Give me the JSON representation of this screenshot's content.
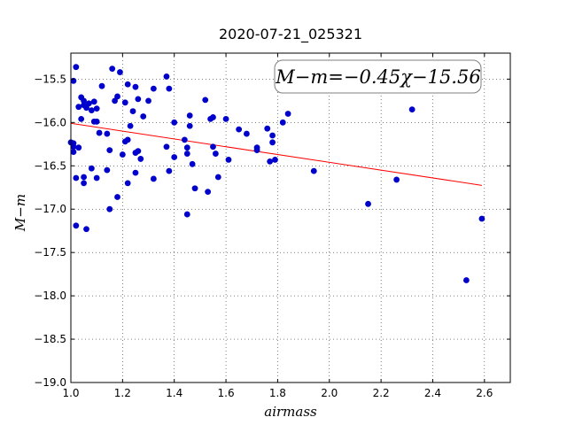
{
  "chart_data": {
    "type": "scatter",
    "title": "2020-07-21_025321",
    "xlabel": "airmass",
    "ylabel": "M−m",
    "xlim": [
      1.0,
      2.7
    ],
    "ylim": [
      -19.0,
      -15.2
    ],
    "xticks": [
      1.0,
      1.2,
      1.4,
      1.6,
      1.8,
      2.0,
      2.2,
      2.4,
      2.6
    ],
    "xtick_labels": [
      "1.0",
      "1.2",
      "1.4",
      "1.6",
      "1.8",
      "2.0",
      "2.2",
      "2.4",
      "2.6"
    ],
    "yticks": [
      -19.0,
      -18.5,
      -18.0,
      -17.5,
      -17.0,
      -16.5,
      -16.0,
      -15.5
    ],
    "ytick_labels": [
      "−19.0",
      "−18.5",
      "−18.0",
      "−17.5",
      "−17.0",
      "−16.5",
      "−16.0",
      "−15.5"
    ],
    "grid": true,
    "annotation": "M−m=−0.45χ−15.56",
    "fit": {
      "slope": -0.45,
      "intercept": -15.56,
      "x_range": [
        1.0,
        2.59
      ],
      "color": "#ff0000"
    },
    "point_color": "#0000cc",
    "series": [
      {
        "points": [
          [
            1.0,
            -16.23
          ],
          [
            1.01,
            -16.28
          ],
          [
            1.01,
            -16.34
          ],
          [
            1.01,
            -16.24
          ],
          [
            1.01,
            -15.52
          ],
          [
            1.02,
            -15.36
          ],
          [
            1.02,
            -16.64
          ],
          [
            1.02,
            -17.19
          ],
          [
            1.03,
            -15.82
          ],
          [
            1.03,
            -16.29
          ],
          [
            1.04,
            -15.96
          ],
          [
            1.04,
            -15.71
          ],
          [
            1.05,
            -15.75
          ],
          [
            1.05,
            -15.8
          ],
          [
            1.05,
            -16.63
          ],
          [
            1.05,
            -16.7
          ],
          [
            1.06,
            -17.23
          ],
          [
            1.06,
            -15.83
          ],
          [
            1.07,
            -15.78
          ],
          [
            1.08,
            -15.86
          ],
          [
            1.08,
            -16.53
          ],
          [
            1.09,
            -15.76
          ],
          [
            1.09,
            -15.99
          ],
          [
            1.1,
            -15.99
          ],
          [
            1.1,
            -15.84
          ],
          [
            1.1,
            -16.64
          ],
          [
            1.11,
            -16.12
          ],
          [
            1.12,
            -15.58
          ],
          [
            1.14,
            -16.13
          ],
          [
            1.14,
            -16.55
          ],
          [
            1.15,
            -16.32
          ],
          [
            1.15,
            -17.0
          ],
          [
            1.16,
            -15.38
          ],
          [
            1.17,
            -15.75
          ],
          [
            1.18,
            -15.7
          ],
          [
            1.18,
            -16.86
          ],
          [
            1.19,
            -15.42
          ],
          [
            1.2,
            -16.37
          ],
          [
            1.21,
            -15.77
          ],
          [
            1.21,
            -16.22
          ],
          [
            1.22,
            -16.2
          ],
          [
            1.22,
            -15.56
          ],
          [
            1.22,
            -16.7
          ],
          [
            1.23,
            -16.04
          ],
          [
            1.24,
            -15.87
          ],
          [
            1.25,
            -16.58
          ],
          [
            1.25,
            -16.35
          ],
          [
            1.25,
            -15.59
          ],
          [
            1.26,
            -16.33
          ],
          [
            1.26,
            -15.73
          ],
          [
            1.27,
            -16.42
          ],
          [
            1.28,
            -15.93
          ],
          [
            1.3,
            -15.75
          ],
          [
            1.32,
            -16.65
          ],
          [
            1.32,
            -15.61
          ],
          [
            1.37,
            -15.47
          ],
          [
            1.37,
            -16.28
          ],
          [
            1.38,
            -15.61
          ],
          [
            1.38,
            -16.56
          ],
          [
            1.4,
            -16.0
          ],
          [
            1.4,
            -16.4
          ],
          [
            1.44,
            -16.2
          ],
          [
            1.45,
            -17.06
          ],
          [
            1.45,
            -16.29
          ],
          [
            1.45,
            -16.36
          ],
          [
            1.46,
            -16.04
          ],
          [
            1.46,
            -15.92
          ],
          [
            1.47,
            -16.48
          ],
          [
            1.48,
            -16.76
          ],
          [
            1.52,
            -15.74
          ],
          [
            1.53,
            -16.8
          ],
          [
            1.54,
            -15.96
          ],
          [
            1.55,
            -15.94
          ],
          [
            1.55,
            -16.28
          ],
          [
            1.56,
            -16.36
          ],
          [
            1.57,
            -16.63
          ],
          [
            1.6,
            -15.96
          ],
          [
            1.61,
            -16.43
          ],
          [
            1.65,
            -16.08
          ],
          [
            1.68,
            -16.13
          ],
          [
            1.72,
            -16.32
          ],
          [
            1.72,
            -16.29
          ],
          [
            1.76,
            -16.07
          ],
          [
            1.77,
            -16.45
          ],
          [
            1.78,
            -16.15
          ],
          [
            1.78,
            -16.23
          ],
          [
            1.79,
            -16.43
          ],
          [
            1.82,
            -16.0
          ],
          [
            1.84,
            -15.9
          ],
          [
            1.94,
            -16.56
          ],
          [
            2.15,
            -16.94
          ],
          [
            2.26,
            -16.66
          ],
          [
            2.32,
            -15.85
          ],
          [
            2.53,
            -17.82
          ],
          [
            2.59,
            -17.11
          ]
        ]
      }
    ]
  }
}
